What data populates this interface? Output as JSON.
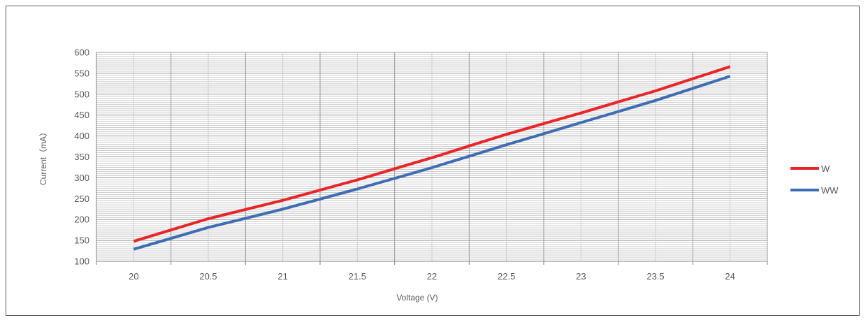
{
  "chart_data": {
    "type": "line",
    "xlabel": "Voltage (V)",
    "ylabel": "Current（mA）",
    "x": [
      20,
      20.5,
      21,
      21.5,
      22,
      22.5,
      23,
      23.5,
      24
    ],
    "x_tick_labels": [
      "20",
      "20.5",
      "21",
      "21.5",
      "22",
      "22.5",
      "23",
      "23.5",
      "24"
    ],
    "y_tick_labels": [
      "100",
      "150",
      "200",
      "250",
      "300",
      "350",
      "400",
      "450",
      "500",
      "550",
      "600"
    ],
    "ylim": [
      100,
      600
    ],
    "grid": true,
    "legend_position": "right",
    "series": [
      {
        "name": "W",
        "color": "#e8262a",
        "values": [
          148,
          202,
          246,
          295,
          348,
          404,
          455,
          508,
          566
        ]
      },
      {
        "name": "WW",
        "color": "#3f6db3",
        "values": [
          129,
          181,
          225,
          273,
          324,
          379,
          432,
          485,
          543
        ]
      }
    ]
  }
}
